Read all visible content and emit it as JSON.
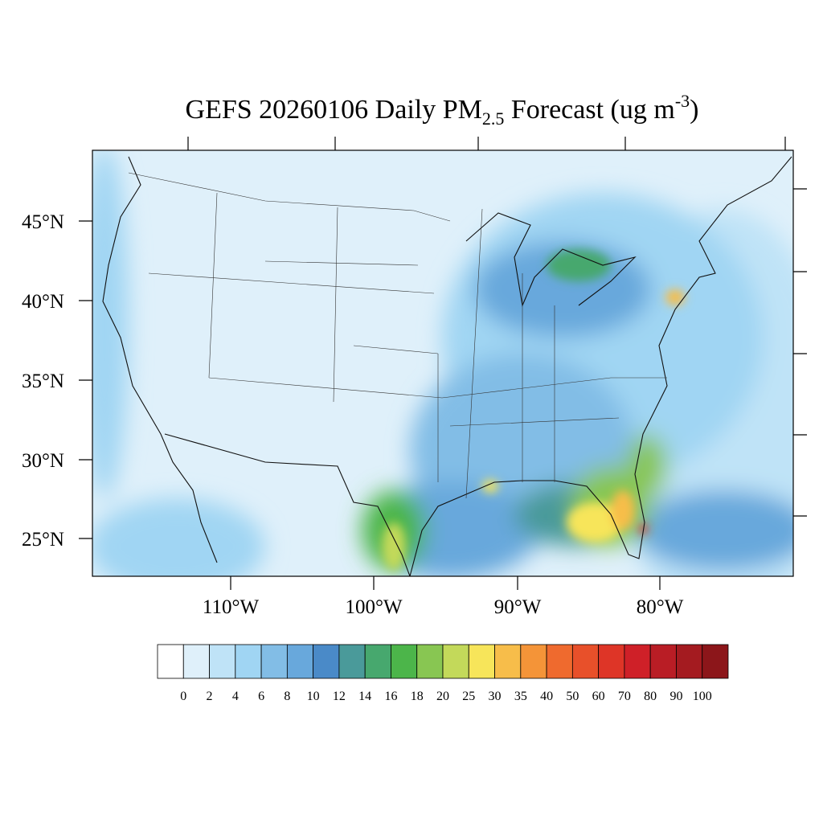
{
  "title": {
    "main": "GEFS 20260106 Daily PM",
    "sub": "2.5",
    "rest": " Forecast (ug m",
    "sup": "-3",
    "end": ")"
  },
  "lat_labels": [
    "45°N",
    "40°N",
    "35°N",
    "30°N",
    "25°N"
  ],
  "lon_labels": [
    "110°W",
    "100°W",
    "90°W",
    "80°W"
  ],
  "colorbar": {
    "labels": [
      0,
      2,
      4,
      6,
      8,
      10,
      12,
      14,
      16,
      18,
      20,
      25,
      30,
      35,
      40,
      50,
      60,
      70,
      80,
      90,
      100
    ],
    "colors": [
      "#ffffff",
      "#dff0fa",
      "#bfe3f7",
      "#a0d5f3",
      "#82bde6",
      "#68a8dc",
      "#4a8ac8",
      "#4a9a9a",
      "#47a86e",
      "#4cb54a",
      "#88c652",
      "#c3d95a",
      "#f7e55a",
      "#f7bd4a",
      "#f49438",
      "#ef6a2e",
      "#e8502a",
      "#de3527",
      "#cf2028",
      "#b91d25",
      "#a41b20",
      "#8c161a"
    ]
  }
}
